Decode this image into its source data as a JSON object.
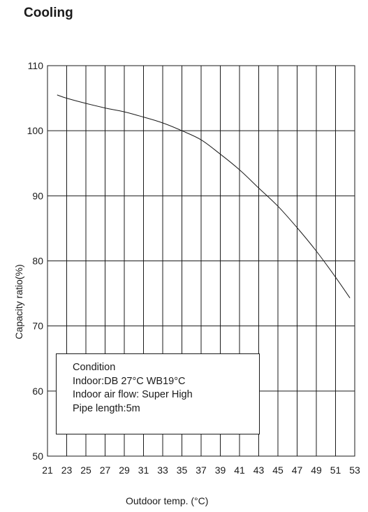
{
  "chart_data": {
    "type": "line",
    "title": "Cooling",
    "xlabel": "Outdoor temp. (°C)",
    "ylabel": "Capacity ratio(%)",
    "xlim": [
      21,
      53
    ],
    "ylim": [
      50,
      110
    ],
    "xticks": [
      21,
      23,
      25,
      27,
      29,
      31,
      33,
      35,
      37,
      39,
      41,
      43,
      45,
      47,
      49,
      51,
      53
    ],
    "yticks": [
      50,
      60,
      70,
      80,
      90,
      100,
      110
    ],
    "grid": true,
    "series": [
      {
        "x": [
          22,
          23,
          25,
          27,
          29,
          31,
          33,
          35,
          37,
          39,
          41,
          43,
          45,
          47,
          49,
          51,
          52.5
        ],
        "values": [
          105.5,
          105.0,
          104.2,
          103.5,
          102.9,
          102.1,
          101.2,
          100.0,
          98.6,
          96.4,
          94.0,
          91.2,
          88.4,
          85.1,
          81.5,
          77.5,
          74.3
        ]
      }
    ],
    "annotation": {
      "lines": [
        "Condition",
        "Indoor:DB 27°C  WB19°C",
        "Indoor air flow: Super High",
        "Pipe length:5m"
      ]
    }
  }
}
